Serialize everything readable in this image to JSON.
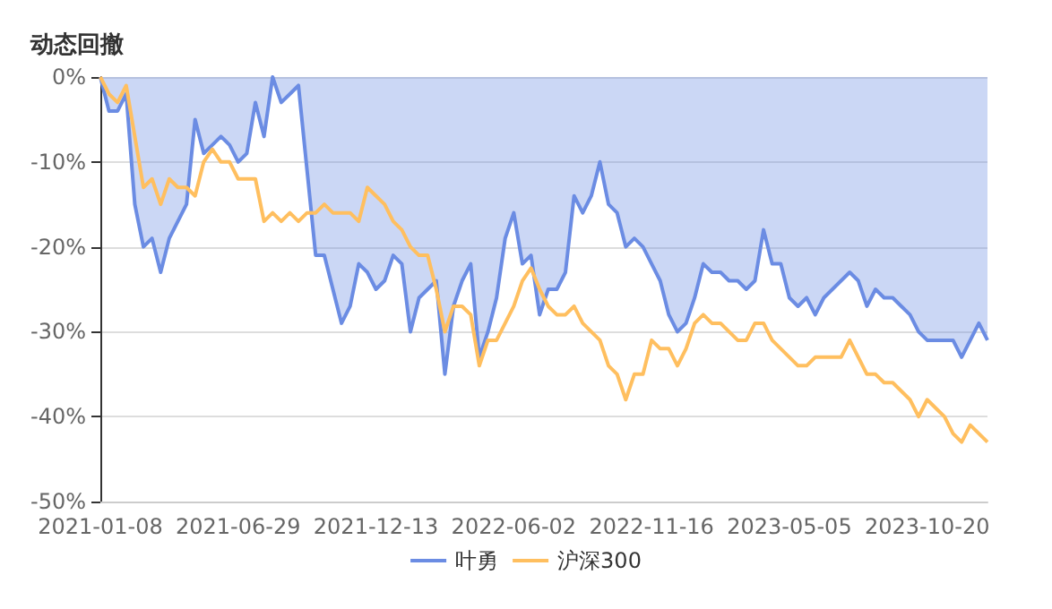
{
  "chart_data": {
    "type": "line",
    "title": "动态回撤",
    "categories": [
      "2021-01-08",
      null,
      null,
      null,
      null,
      null,
      null,
      null,
      null,
      null,
      null,
      null,
      null,
      null,
      null,
      null,
      "2021-06-29",
      null,
      null,
      null,
      null,
      null,
      null,
      null,
      null,
      null,
      null,
      null,
      null,
      null,
      null,
      null,
      "2021-12-13",
      null,
      null,
      null,
      null,
      null,
      null,
      null,
      null,
      null,
      null,
      null,
      null,
      null,
      null,
      null,
      "2022-06-02",
      null,
      null,
      null,
      null,
      null,
      null,
      null,
      null,
      null,
      null,
      null,
      null,
      null,
      null,
      null,
      "2022-11-16",
      null,
      null,
      null,
      null,
      null,
      null,
      null,
      null,
      null,
      null,
      null,
      null,
      null,
      null,
      null,
      "2023-05-05",
      null,
      null,
      null,
      null,
      null,
      null,
      null,
      null,
      null,
      null,
      null,
      null,
      null,
      null,
      null,
      "2023-10-20",
      null,
      null,
      null,
      null,
      null,
      null,
      null
    ],
    "series": [
      {
        "name": "叶勇",
        "type": "area",
        "color": "#6b8ce3",
        "values": [
          0,
          -4,
          -4,
          -2,
          -15,
          -20,
          -19,
          -23,
          -19,
          -17,
          -15,
          -5,
          -9,
          -8,
          -7,
          -8,
          -10,
          -9,
          -3,
          -7,
          0,
          -3,
          -2,
          -1,
          -11,
          -21,
          -21,
          -25,
          -29,
          -27,
          -22,
          -23,
          -25,
          -24,
          -21,
          -22,
          -30,
          -26,
          -25,
          -24,
          -35,
          -27,
          -24,
          -22,
          -33,
          -30,
          -26,
          -19,
          -16,
          -22,
          -21,
          -28,
          -25,
          -25,
          -23,
          -14,
          -16,
          -14,
          -10,
          -15,
          -16,
          -20,
          -19,
          -20,
          -22,
          -24,
          -28,
          -30,
          -29,
          -26,
          -22,
          -23,
          -23,
          -24,
          -24,
          -25,
          -24,
          -18,
          -22,
          -22,
          -26,
          -27,
          -26,
          -28,
          -26,
          -25,
          -24,
          -23,
          -24,
          -27,
          -25,
          -26,
          -26,
          -27,
          -28,
          -30,
          -31,
          -31,
          -31,
          -31,
          -33,
          -31,
          -29,
          -31
        ]
      },
      {
        "name": "沪深300",
        "color": "#ffbf5f",
        "values": [
          0,
          -2,
          -3,
          -1,
          -7,
          -13,
          -12,
          -15,
          -12,
          -13,
          -13,
          -14,
          -10,
          -8.5,
          -10,
          -10,
          -12,
          -12,
          -12,
          -17,
          -16,
          -17,
          -16,
          -17,
          -16,
          -16,
          -15,
          -16,
          -16,
          -16,
          -17,
          -13,
          -14,
          -15,
          -17,
          -18,
          -20,
          -21,
          -21,
          -25,
          -30,
          -27,
          -27,
          -28,
          -34,
          -31,
          -31,
          -29,
          -27,
          -24,
          -22.5,
          -25,
          -27,
          -28,
          -28,
          -27,
          -29,
          -30,
          -31,
          -34,
          -35,
          -38,
          -35,
          -35,
          -31,
          -32,
          -32,
          -34,
          -32,
          -29,
          -28,
          -29,
          -29,
          -30,
          -31,
          -31,
          -29,
          -29,
          -31,
          -32,
          -33,
          -34,
          -34,
          -33,
          -33,
          -33,
          -33,
          -31,
          -33,
          -35,
          -35,
          -36,
          -36,
          -37,
          -38,
          -40,
          -38,
          -39,
          -40,
          -42,
          -43,
          -41,
          -42,
          -43
        ]
      }
    ],
    "ylim": [
      -50,
      0
    ],
    "yticks": [
      {
        "value": 0,
        "label": "0%"
      },
      {
        "value": -10,
        "label": "-10%"
      },
      {
        "value": -20,
        "label": "-20%"
      },
      {
        "value": -30,
        "label": "-30%"
      },
      {
        "value": -40,
        "label": "-40%"
      },
      {
        "value": -50,
        "label": "-50%"
      }
    ],
    "grid": "y",
    "legend": "bottom",
    "marker": "none"
  }
}
